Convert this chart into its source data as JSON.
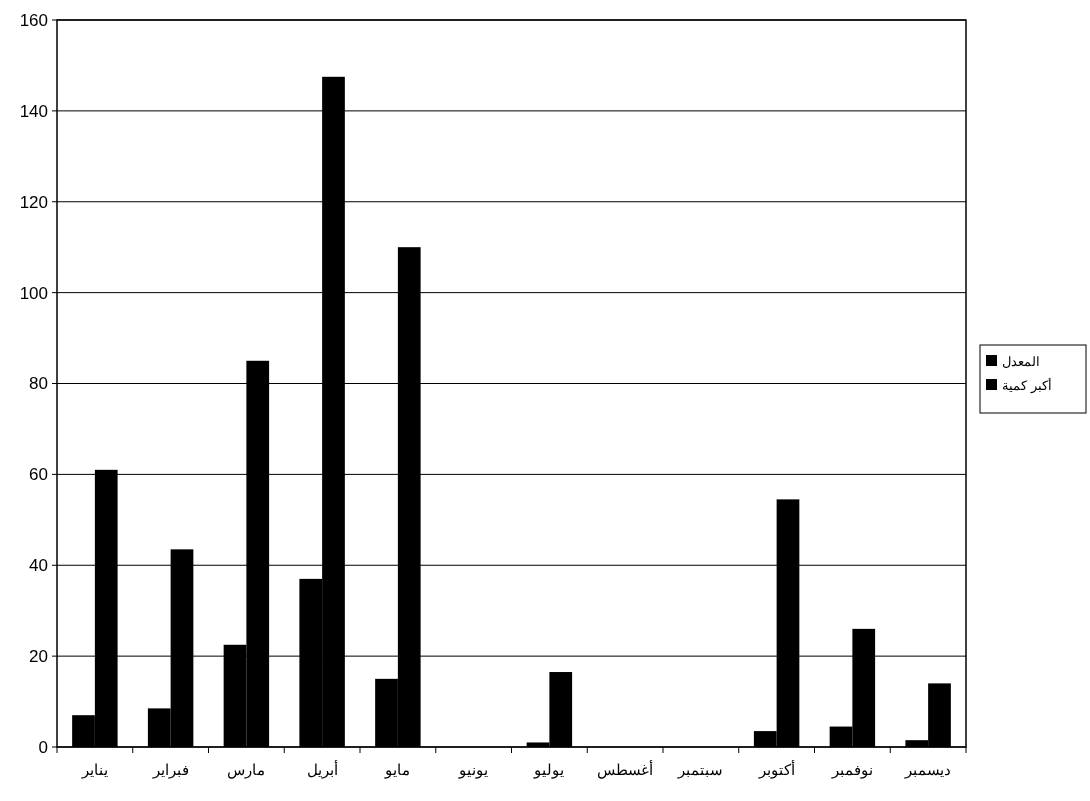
{
  "chart_data": {
    "type": "bar",
    "categories": [
      "يناير",
      "فبراير",
      "مارس",
      "أبريل",
      "مايو",
      "يونيو",
      "يوليو",
      "أغسطس",
      "سبتمبر",
      "أكتوبر",
      "نوفمبر",
      "ديسمبر"
    ],
    "series": [
      {
        "name": "المعدل",
        "color": "#000000",
        "values": [
          7,
          8.5,
          22.5,
          37,
          15,
          0,
          1,
          0,
          0,
          3.5,
          4.5,
          1.5
        ]
      },
      {
        "name": "أكبر كمية",
        "color": "#000000",
        "values": [
          61,
          43.5,
          85,
          147.5,
          110,
          0,
          16.5,
          0,
          0,
          54.5,
          26,
          14
        ]
      }
    ],
    "ylim": [
      0,
      160
    ],
    "yticks": [
      0,
      20,
      40,
      60,
      80,
      100,
      120,
      140,
      160
    ],
    "grid": "y",
    "legend": "right"
  }
}
